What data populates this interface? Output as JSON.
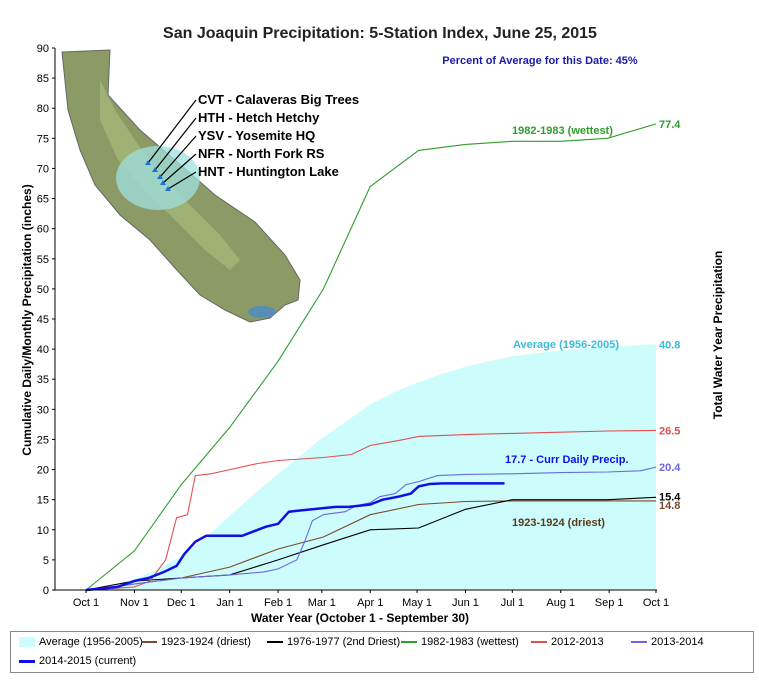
{
  "chart_data": {
    "type": "line",
    "title": "San Joaquin Precipitation: 5-Station Index, June 25, 2015",
    "xlabel": "Water Year (October 1 - September 30)",
    "ylabel": "Cumulative Daily/Monthly Precipitation (inches)",
    "y2label": "Total Water Year Precipitation",
    "x_ticks": [
      "Oct 1",
      "Nov 1",
      "Dec 1",
      "Jan 1",
      "Feb 1",
      "Mar 1",
      "Apr 1",
      "May 1",
      "Jun 1",
      "Jul 1",
      "Aug 1",
      "Sep 1",
      "Oct 1"
    ],
    "y_ticks": [
      0,
      5,
      10,
      15,
      20,
      25,
      30,
      35,
      40,
      45,
      50,
      55,
      60,
      65,
      70,
      75,
      80,
      85,
      90
    ],
    "ylim": [
      0,
      90
    ],
    "xlim_days": [
      0,
      365
    ],
    "percent_note": "Percent of Average for this Date: 45%",
    "stations": [
      "CVT - Calaveras Big Trees",
      "HTH - Hetch Hetchy",
      "YSV - Yosemite HQ",
      "NFR - North Fork RS",
      "HNT - Huntington Lake"
    ],
    "annotations": {
      "wettest": "1982-1983 (wettest)",
      "average": "Average (1956-2005)",
      "current": "17.7 -  Curr Daily Precip.",
      "driest": "1923-1924 (driest)"
    },
    "end_labels": [
      {
        "text": "77.4",
        "color": "#2e9e2e"
      },
      {
        "text": "40.8",
        "color": "#3bbcd6"
      },
      {
        "text": "26.5",
        "color": "#e05050"
      },
      {
        "text": "20.4",
        "color": "#6a6ae0"
      },
      {
        "text": "15.4",
        "color": "#000000"
      },
      {
        "text": "14.8",
        "color": "#7a4a2a"
      }
    ],
    "series": [
      {
        "name": "Average (1956-2005)",
        "type": "area",
        "color": "#ccfcfc",
        "x": [
          0,
          15,
          31,
          45,
          61,
          76,
          92,
          107,
          123,
          137,
          151,
          166,
          182,
          196,
          212,
          227,
          242,
          258,
          273,
          288,
          304,
          334,
          365
        ],
        "y": [
          0,
          0.5,
          1.8,
          3.4,
          5.6,
          8.5,
          12.3,
          15.8,
          19.3,
          22.2,
          25.2,
          27.9,
          30.8,
          32.7,
          34.4,
          35.8,
          37.0,
          38.0,
          38.8,
          39.3,
          39.8,
          40.4,
          40.8
        ]
      },
      {
        "name": "1923-1924 (driest)",
        "type": "line",
        "color": "#7a4a2a",
        "x": [
          0,
          31,
          61,
          92,
          123,
          152,
          182,
          213,
          243,
          273,
          304,
          334,
          365
        ],
        "y": [
          0,
          1.0,
          2.0,
          3.8,
          6.8,
          8.8,
          12.5,
          14.2,
          14.7,
          14.8,
          14.8,
          14.8,
          14.8
        ]
      },
      {
        "name": "1976-1977 (2nd Driest)",
        "type": "line",
        "color": "#000000",
        "x": [
          0,
          31,
          61,
          92,
          123,
          152,
          182,
          213,
          243,
          273,
          304,
          334,
          365
        ],
        "y": [
          0,
          1.5,
          2.0,
          2.5,
          5.0,
          7.5,
          10.0,
          10.3,
          13.4,
          15.0,
          15.0,
          15.0,
          15.4
        ]
      },
      {
        "name": "1982-1983 (wettest)",
        "type": "line",
        "color": "#2e9e2e",
        "x": [
          0,
          31,
          61,
          92,
          123,
          152,
          182,
          213,
          243,
          273,
          304,
          334,
          365
        ],
        "y": [
          0,
          6.5,
          17.5,
          27.0,
          38.0,
          50.0,
          67.0,
          73.0,
          74.0,
          74.5,
          74.5,
          75.0,
          77.4
        ]
      },
      {
        "name": "2012-2013",
        "type": "line",
        "color": "#e05050",
        "x": [
          0,
          31,
          41,
          51,
          58,
          65,
          70,
          80,
          92,
          110,
          123,
          152,
          170,
          182,
          200,
          213,
          243,
          273,
          304,
          334,
          365
        ],
        "y": [
          0,
          0.5,
          1.5,
          5.0,
          12.0,
          12.5,
          19.0,
          19.3,
          20.0,
          21.0,
          21.5,
          22.0,
          22.5,
          24.0,
          24.8,
          25.5,
          25.8,
          26.0,
          26.2,
          26.4,
          26.5
        ]
      },
      {
        "name": "2013-2014",
        "type": "line",
        "color": "#6a6ae0",
        "x": [
          0,
          31,
          61,
          92,
          114,
          123,
          135,
          140,
          145,
          152,
          166,
          173,
          182,
          188,
          198,
          205,
          213,
          225,
          243,
          273,
          304,
          334,
          355,
          365
        ],
        "y": [
          0,
          1.0,
          2.0,
          2.5,
          3.0,
          3.5,
          5.0,
          8.0,
          11.5,
          12.5,
          13.0,
          14.0,
          14.5,
          15.5,
          16.0,
          17.5,
          18.0,
          19.0,
          19.2,
          19.3,
          19.5,
          19.6,
          19.8,
          20.4
        ]
      },
      {
        "name": "2014-2015 (current)",
        "type": "line",
        "color": "#1010e6",
        "width": 2.5,
        "x": [
          0,
          20,
          31,
          40,
          50,
          58,
          63,
          70,
          77,
          85,
          92,
          100,
          115,
          123,
          130,
          137,
          145,
          152,
          160,
          168,
          175,
          182,
          190,
          200,
          208,
          213,
          220,
          228,
          237,
          244,
          268
        ],
        "y": [
          0,
          0.5,
          1.5,
          2.0,
          3.0,
          4.0,
          6.0,
          8.0,
          9.0,
          9.0,
          9.0,
          9.0,
          10.5,
          11.0,
          13.0,
          13.2,
          13.4,
          13.6,
          13.8,
          13.8,
          14.0,
          14.2,
          15.0,
          15.5,
          16.0,
          17.2,
          17.6,
          17.7,
          17.7,
          17.7,
          17.7
        ]
      }
    ],
    "legend": [
      {
        "label": "Average (1956-2005)",
        "color": "#ccfcfc",
        "area": true
      },
      {
        "label": "1923-1924 (driest)",
        "color": "#7a4a2a"
      },
      {
        "label": "1976-1977 (2nd Driest)",
        "color": "#000000"
      },
      {
        "label": "1982-1983 (wettest)",
        "color": "#2e9e2e"
      },
      {
        "label": "2012-2013",
        "color": "#e05050"
      },
      {
        "label": "2013-2014",
        "color": "#6a6ae0"
      },
      {
        "label": "2014-2015 (current)",
        "color": "#1010e6"
      }
    ]
  }
}
